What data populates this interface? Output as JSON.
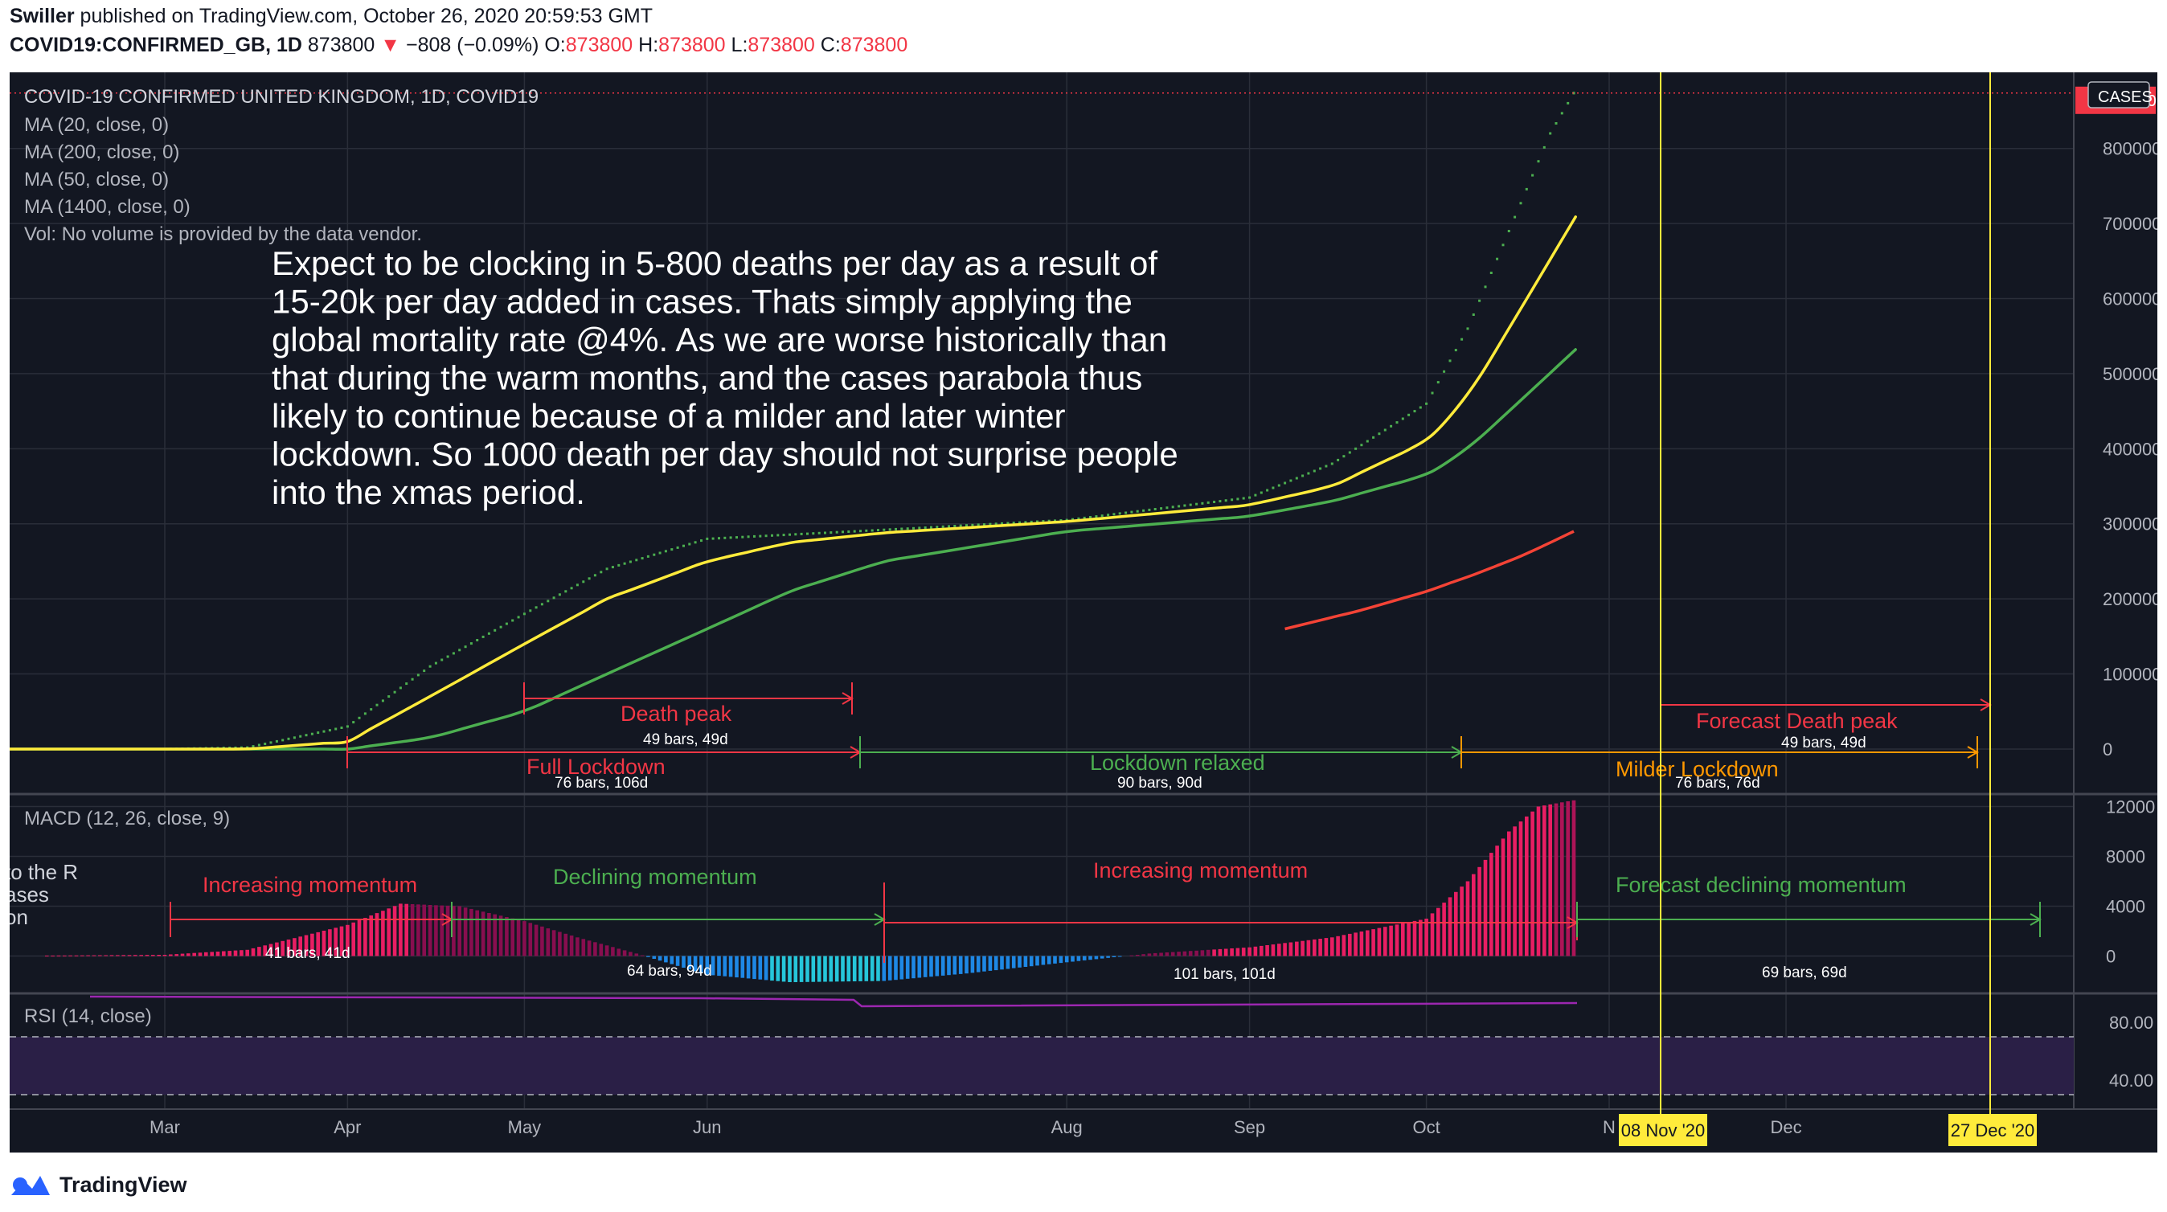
{
  "header": {
    "author": "Swiller",
    "published": "published on TradingView.com, October 26, 2020 20:59:53 GMT",
    "symbol": "COVID19:CONFIRMED_GB, 1D",
    "last": "873800",
    "change": "−808 (−0.09%)",
    "o_label": "O:",
    "o_value": "873800",
    "h_label": "H:",
    "h_value": "873800",
    "l_label": "L:",
    "l_value": "873800",
    "c_label": "C:",
    "c_value": "873800"
  },
  "footer": {
    "brand": "TradingView"
  },
  "colors": {
    "background": "#131722",
    "grid": "#2a2e39",
    "text": "#b2b5be",
    "ma20": "#ffeb3b",
    "ma50": "#4caf50",
    "ma200": "#f44336",
    "price": "#4caf50",
    "red_note": "#f23645",
    "green_note": "#4caf50",
    "orange_note": "#ff9800",
    "marker_line": "#ffeb3b",
    "macd_pos": "#e91e63",
    "macd_neg": "#2196f3",
    "rsi": "#9c27b0"
  },
  "chart_data": [
    {
      "type": "line",
      "panel": "price",
      "title": "COVID-19 CONFIRMED UNITED KINGDOM, 1D, COVID19",
      "indicators": [
        "MA (20, close, 0)",
        "MA (200, close, 0)",
        "MA (50, close, 0)",
        "MA (1400, close, 0)"
      ],
      "volume_note": "Vol: No volume is provided by the data vendor.",
      "axis_label": "CASES",
      "last_value_label": "873800",
      "x_ticks": [
        "Mar",
        "Apr",
        "May",
        "Jun",
        "Aug",
        "Sep",
        "Oct",
        "N",
        "Dec"
      ],
      "date_markers": [
        "08 Nov '20",
        "27 Dec '20"
      ],
      "y_ticks": [
        0,
        100000,
        200000,
        300000,
        400000,
        500000,
        600000,
        700000,
        800000
      ],
      "ylim": [
        -60000,
        880000
      ],
      "series": [
        {
          "name": "COVID19:CONFIRMED_GB",
          "style": "dotted",
          "x": [
            "2020-02-01",
            "2020-03-01",
            "2020-03-15",
            "2020-04-01",
            "2020-04-15",
            "2020-05-01",
            "2020-05-15",
            "2020-06-01",
            "2020-07-01",
            "2020-08-01",
            "2020-09-01",
            "2020-09-15",
            "2020-10-01",
            "2020-10-08",
            "2020-10-15",
            "2020-10-22",
            "2020-10-26"
          ],
          "y": [
            0,
            0,
            2000,
            30000,
            110000,
            180000,
            240000,
            280000,
            292000,
            305000,
            335000,
            380000,
            460000,
            560000,
            690000,
            820000,
            873800
          ]
        },
        {
          "name": "MA (20, close, 0)",
          "x": [
            "2020-02-01",
            "2020-03-15",
            "2020-04-01",
            "2020-04-15",
            "2020-05-01",
            "2020-05-15",
            "2020-06-01",
            "2020-06-15",
            "2020-07-01",
            "2020-08-01",
            "2020-09-01",
            "2020-09-15",
            "2020-10-01",
            "2020-10-08",
            "2020-10-15",
            "2020-10-26"
          ],
          "y": [
            0,
            0,
            10000,
            70000,
            140000,
            200000,
            250000,
            275000,
            288000,
            303000,
            325000,
            350000,
            410000,
            470000,
            560000,
            705000
          ]
        },
        {
          "name": "MA (50, close, 0)",
          "x": [
            "2020-02-01",
            "2020-04-01",
            "2020-04-15",
            "2020-05-01",
            "2020-05-15",
            "2020-06-01",
            "2020-06-15",
            "2020-07-01",
            "2020-08-01",
            "2020-09-01",
            "2020-09-15",
            "2020-10-01",
            "2020-10-08",
            "2020-10-15",
            "2020-10-26"
          ],
          "y": [
            0,
            0,
            15000,
            50000,
            100000,
            160000,
            210000,
            250000,
            290000,
            310000,
            330000,
            365000,
            400000,
            450000,
            530000
          ]
        },
        {
          "name": "MA (200, close, 0)",
          "x": [
            "2020-09-07",
            "2020-09-20",
            "2020-10-01",
            "2020-10-10",
            "2020-10-18",
            "2020-10-26"
          ],
          "y": [
            160000,
            185000,
            210000,
            235000,
            260000,
            290000
          ]
        }
      ],
      "annotations": [
        {
          "label": "Death peak",
          "sub": "49 bars, 49d",
          "color": "red"
        },
        {
          "label": "Full Lockdown",
          "sub": "76 bars, 106d",
          "color": "red"
        },
        {
          "label": "Lockdown relaxed",
          "sub": "90 bars, 90d",
          "color": "green"
        },
        {
          "label": "Milder Lockdown",
          "sub": "76 bars, 76d",
          "color": "orange"
        },
        {
          "label": "Forecast Death peak",
          "sub": "49 bars, 49d",
          "color": "red"
        }
      ],
      "note": "Expect to be clocking in 5-800 deaths per day as a result of 15-20k per day added in cases. Thats simply applying the global mortality rate @4%. As we are worse historically than that during the warm months, and the cases parabola thus likely to continue because of a milder and later winter lockdown. So 1000 death per day should not surprise people into the xmas period."
    },
    {
      "type": "bar",
      "panel": "macd",
      "title": "MACD (12, 26, close, 9)",
      "y_ticks": [
        0,
        4000,
        8000,
        12000
      ],
      "ylim": [
        -3000,
        13000
      ],
      "x": [
        "2020-02-01",
        "2020-03-01",
        "2020-03-15",
        "2020-04-01",
        "2020-04-10",
        "2020-04-20",
        "2020-05-01",
        "2020-05-10",
        "2020-05-20",
        "2020-06-01",
        "2020-06-15",
        "2020-07-01",
        "2020-07-15",
        "2020-08-01",
        "2020-08-15",
        "2020-09-01",
        "2020-09-15",
        "2020-10-01",
        "2020-10-08",
        "2020-10-15",
        "2020-10-20",
        "2020-10-26"
      ],
      "y": [
        0,
        100,
        500,
        2500,
        4200,
        4000,
        2800,
        1500,
        200,
        -1500,
        -2100,
        -2000,
        -1400,
        -500,
        200,
        700,
        1500,
        3000,
        6000,
        10000,
        12000,
        12500
      ],
      "cut_text": [
        "to the R",
        "ases",
        "on"
      ],
      "annotations": [
        {
          "label": "Increasing momentum",
          "sub": "41 bars, 41d",
          "color": "red"
        },
        {
          "label": "Declining momentum",
          "sub": "64 bars, 94d",
          "color": "green"
        },
        {
          "label": "Increasing momentum",
          "sub": "101 bars, 101d",
          "color": "red"
        },
        {
          "label": "Forecast declining momentum",
          "sub": "69 bars, 69d",
          "color": "green"
        }
      ]
    },
    {
      "type": "line",
      "panel": "rsi",
      "title": "RSI (14, close)",
      "y_ticks": [
        "80.00",
        "40.00"
      ],
      "ylim": [
        20,
        100
      ],
      "bands": [
        30,
        70
      ]
    }
  ]
}
